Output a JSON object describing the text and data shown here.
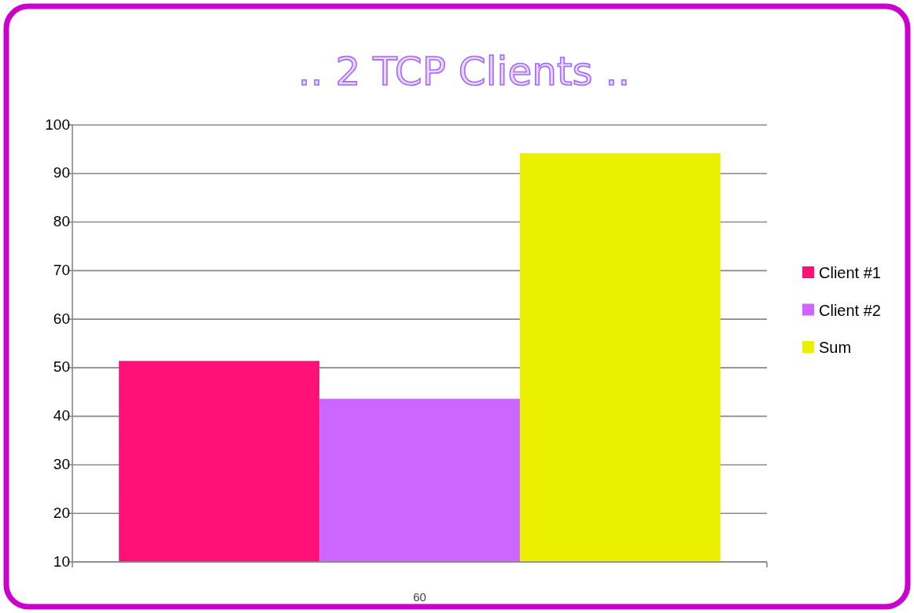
{
  "chart_data": {
    "type": "bar",
    "title": ".. 2 TCP Clients ..",
    "categories": [
      "60"
    ],
    "series": [
      {
        "name": "Client #1",
        "color": "#ff1177",
        "values": [
          51.4
        ]
      },
      {
        "name": "Client #2",
        "color": "#cc66ff",
        "values": [
          43.6
        ]
      },
      {
        "name": "Sum",
        "color": "#ebef00",
        "values": [
          94.2
        ]
      }
    ],
    "ylim": [
      10,
      100
    ],
    "yticks": [
      10,
      20,
      30,
      40,
      50,
      60,
      70,
      80,
      90,
      100
    ],
    "grid": "y",
    "legend": "right"
  }
}
